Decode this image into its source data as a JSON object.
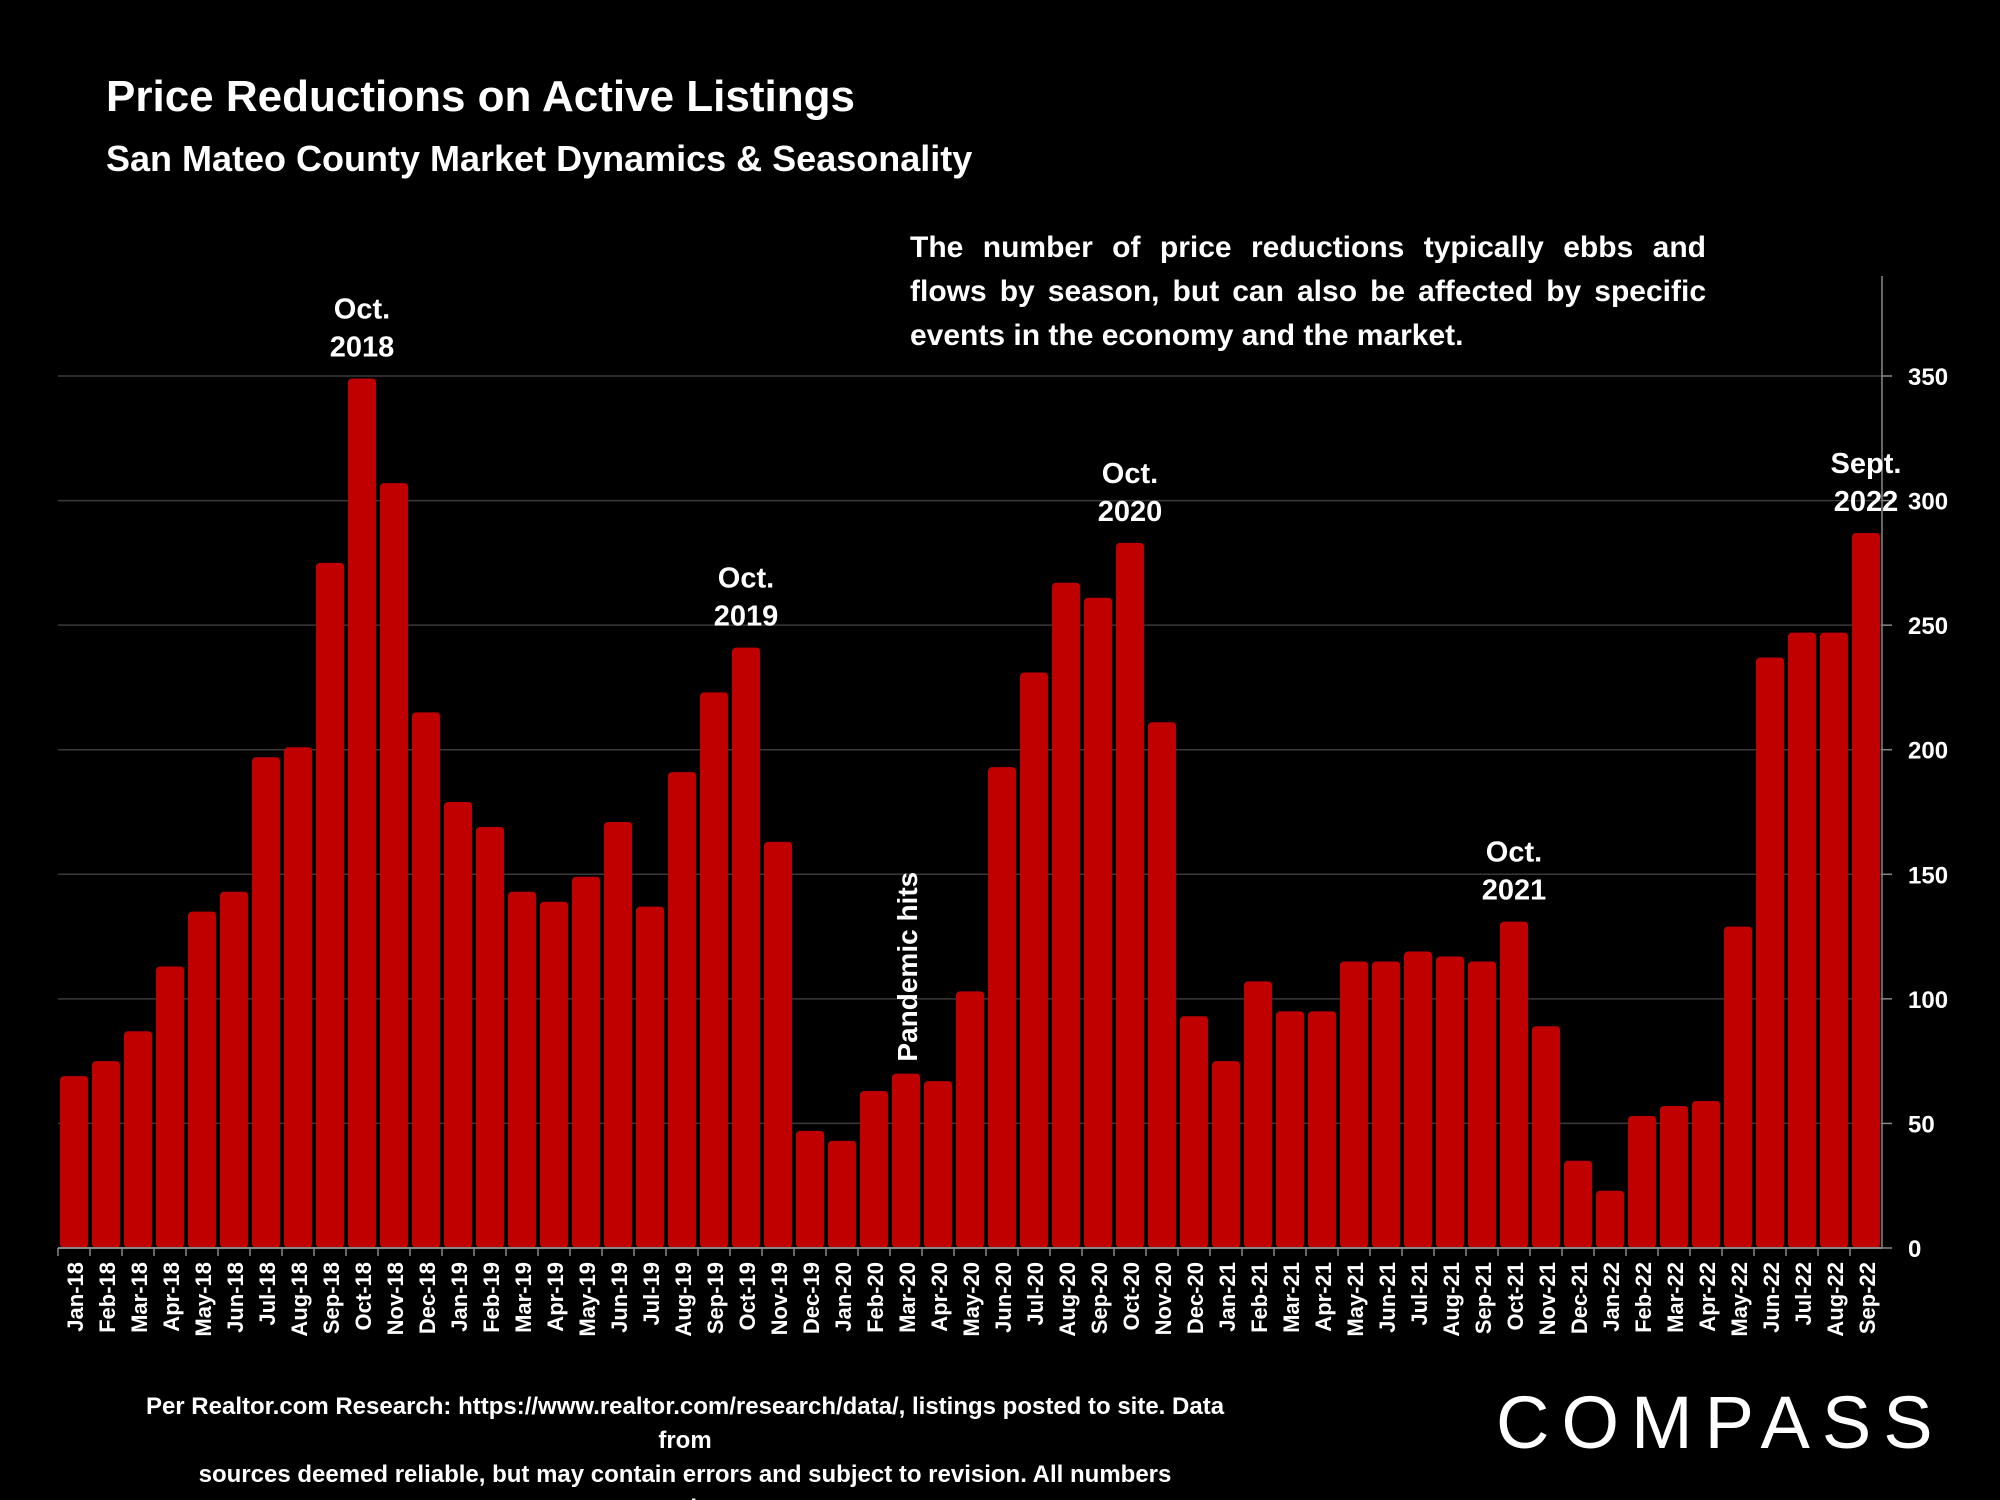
{
  "title": "Price Reductions on Active Listings",
  "subtitle": "San Mateo County Market Dynamics & Seasonality",
  "annotation": "The number of price reductions typically ebbs and flows by season, but can also be affected by specific events in the economy and the market.",
  "footnote": {
    "line1": "Per Realtor.com Research:  https://www.realtor.com/research/data/, listings posted to site. Data from",
    "line2": "sources deemed reliable, but may contain errors and subject to revision. All numbers approximate."
  },
  "brand": "COMPASS",
  "colors": {
    "background": "#000000",
    "bar": "#c00000",
    "text": "#ffffff",
    "grid": "#3a3a3a"
  },
  "chart_data": {
    "type": "bar",
    "title": "Price Reductions on Active Listings",
    "subtitle": "San Mateo County Market Dynamics & Seasonality",
    "ylim": [
      0,
      350
    ],
    "y_axis_side": "right",
    "yticks": [
      0,
      50,
      100,
      150,
      200,
      250,
      300,
      350
    ],
    "grid": true,
    "categories": [
      "Jan-18",
      "Feb-18",
      "Mar-18",
      "Apr-18",
      "May-18",
      "Jun-18",
      "Jul-18",
      "Aug-18",
      "Sep-18",
      "Oct-18",
      "Nov-18",
      "Dec-18",
      "Jan-19",
      "Feb-19",
      "Mar-19",
      "Apr-19",
      "May-19",
      "Jun-19",
      "Jul-19",
      "Aug-19",
      "Sep-19",
      "Oct-19",
      "Nov-19",
      "Dec-19",
      "Jan-20",
      "Feb-20",
      "Mar-20",
      "Apr-20",
      "May-20",
      "Jun-20",
      "Jul-20",
      "Aug-20",
      "Sep-20",
      "Oct-20",
      "Nov-20",
      "Dec-20",
      "Jan-21",
      "Feb-21",
      "Mar-21",
      "Apr-21",
      "May-21",
      "Jun-21",
      "Jul-21",
      "Aug-21",
      "Sep-21",
      "Oct-21",
      "Nov-21",
      "Dec-21",
      "Jan-22",
      "Feb-22",
      "Mar-22",
      "Apr-22",
      "May-22",
      "Jun-22",
      "Jul-22",
      "Aug-22",
      "Sep-22"
    ],
    "values": [
      69,
      75,
      87,
      113,
      135,
      143,
      197,
      201,
      275,
      349,
      307,
      215,
      179,
      169,
      143,
      139,
      149,
      171,
      137,
      191,
      223,
      241,
      163,
      47,
      43,
      63,
      70,
      67,
      103,
      193,
      231,
      267,
      261,
      283,
      211,
      93,
      75,
      107,
      95,
      95,
      115,
      115,
      119,
      117,
      115,
      131,
      89,
      35,
      23,
      53,
      57,
      59,
      129,
      237,
      247,
      247,
      287
    ],
    "annotations": [
      {
        "lines": [
          "Oct.",
          "2018"
        ],
        "category": "Oct-18"
      },
      {
        "lines": [
          "Oct.",
          "2019"
        ],
        "category": "Oct-19"
      },
      {
        "lines": [
          "Oct.",
          "2020"
        ],
        "category": "Oct-20"
      },
      {
        "lines": [
          "Oct.",
          "2021"
        ],
        "category": "Oct-21"
      },
      {
        "lines": [
          "Sept.",
          "2022"
        ],
        "category": "Sep-22"
      }
    ],
    "vertical_annotation": {
      "text": "Pandemic hits",
      "category": "Mar-20"
    }
  }
}
